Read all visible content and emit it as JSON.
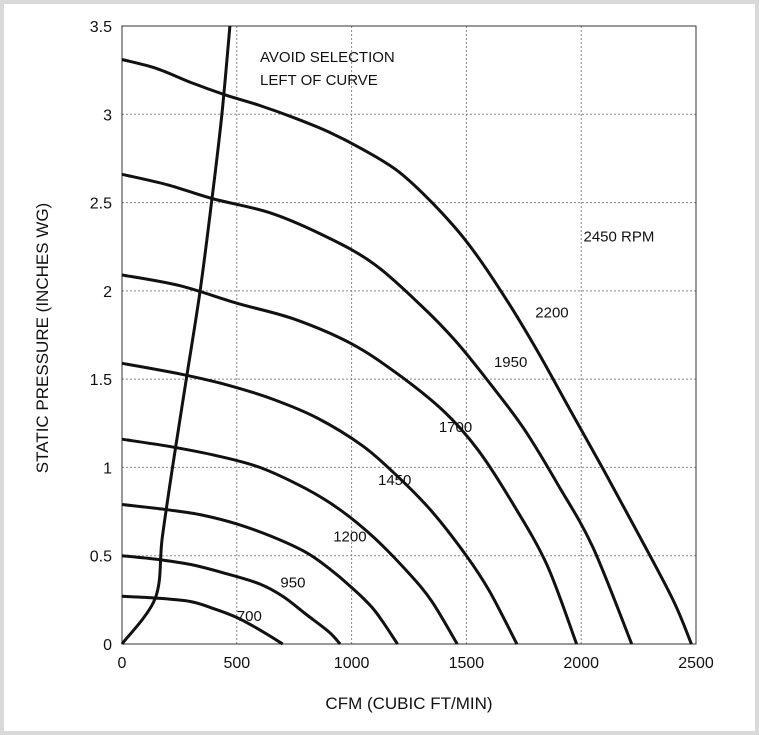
{
  "chart_data": {
    "type": "line",
    "xlabel": "CFM (CUBIC FT/MIN)",
    "ylabel": "STATIC PRESSURE (INCHES WG)",
    "xlim": [
      0,
      2500
    ],
    "ylim": [
      0,
      3.5
    ],
    "x_ticks": [
      "0",
      "500",
      "1000",
      "1500",
      "2000",
      "2500"
    ],
    "y_ticks": [
      "0",
      "0.5",
      "1",
      "1.5",
      "2",
      "2.5",
      "3",
      "3.5"
    ],
    "grid": true,
    "annotation": [
      "AVOID SELECTION",
      "LEFT OF CURVE"
    ],
    "series": [
      {
        "name": "700",
        "label_at": [
          500,
          0.13
        ],
        "points": [
          [
            0,
            0.27
          ],
          [
            150,
            0.26
          ],
          [
            300,
            0.24
          ],
          [
            400,
            0.2
          ],
          [
            500,
            0.15
          ],
          [
            600,
            0.08
          ],
          [
            700,
            0
          ]
        ]
      },
      {
        "name": "950",
        "label_at": [
          690,
          0.32
        ],
        "points": [
          [
            0,
            0.5
          ],
          [
            150,
            0.48
          ],
          [
            300,
            0.45
          ],
          [
            450,
            0.4
          ],
          [
            600,
            0.34
          ],
          [
            700,
            0.27
          ],
          [
            800,
            0.17
          ],
          [
            900,
            0.07
          ],
          [
            950,
            0
          ]
        ]
      },
      {
        "name": "1200",
        "label_at": [
          920,
          0.58
        ],
        "points": [
          [
            0,
            0.79
          ],
          [
            200,
            0.76
          ],
          [
            350,
            0.73
          ],
          [
            500,
            0.68
          ],
          [
            650,
            0.61
          ],
          [
            800,
            0.52
          ],
          [
            900,
            0.43
          ],
          [
            1000,
            0.32
          ],
          [
            1100,
            0.19
          ],
          [
            1200,
            0
          ]
        ]
      },
      {
        "name": "1450",
        "label_at": [
          1115,
          0.9
        ],
        "points": [
          [
            0,
            1.16
          ],
          [
            200,
            1.12
          ],
          [
            400,
            1.07
          ],
          [
            600,
            1.0
          ],
          [
            800,
            0.88
          ],
          [
            950,
            0.76
          ],
          [
            1100,
            0.6
          ],
          [
            1250,
            0.4
          ],
          [
            1350,
            0.24
          ],
          [
            1460,
            0
          ]
        ]
      },
      {
        "name": "1700",
        "label_at": [
          1380,
          1.2
        ],
        "points": [
          [
            0,
            1.59
          ],
          [
            250,
            1.53
          ],
          [
            450,
            1.47
          ],
          [
            650,
            1.39
          ],
          [
            850,
            1.28
          ],
          [
            1050,
            1.12
          ],
          [
            1200,
            0.95
          ],
          [
            1350,
            0.75
          ],
          [
            1500,
            0.5
          ],
          [
            1600,
            0.3
          ],
          [
            1720,
            0
          ]
        ]
      },
      {
        "name": "1950",
        "label_at": [
          1620,
          1.57
        ],
        "points": [
          [
            0,
            2.09
          ],
          [
            250,
            2.03
          ],
          [
            500,
            1.93
          ],
          [
            750,
            1.84
          ],
          [
            1000,
            1.7
          ],
          [
            1200,
            1.53
          ],
          [
            1400,
            1.32
          ],
          [
            1550,
            1.1
          ],
          [
            1700,
            0.8
          ],
          [
            1850,
            0.45
          ],
          [
            1980,
            0
          ]
        ]
      },
      {
        "name": "2200",
        "label_at": [
          1800,
          1.85
        ],
        "points": [
          [
            0,
            2.66
          ],
          [
            200,
            2.6
          ],
          [
            400,
            2.52
          ],
          [
            650,
            2.44
          ],
          [
            900,
            2.3
          ],
          [
            1100,
            2.15
          ],
          [
            1300,
            1.92
          ],
          [
            1450,
            1.72
          ],
          [
            1600,
            1.48
          ],
          [
            1750,
            1.22
          ],
          [
            1900,
            0.9
          ],
          [
            2050,
            0.55
          ],
          [
            2220,
            0
          ]
        ]
      },
      {
        "name": "2450 RPM",
        "label_at": [
          2010,
          2.28
        ],
        "points": [
          [
            0,
            3.31
          ],
          [
            150,
            3.26
          ],
          [
            300,
            3.18
          ],
          [
            450,
            3.11
          ],
          [
            600,
            3.05
          ],
          [
            750,
            2.98
          ],
          [
            900,
            2.9
          ],
          [
            1050,
            2.8
          ],
          [
            1200,
            2.68
          ],
          [
            1350,
            2.5
          ],
          [
            1500,
            2.28
          ],
          [
            1650,
            2.0
          ],
          [
            1800,
            1.68
          ],
          [
            1950,
            1.33
          ],
          [
            2100,
            0.98
          ],
          [
            2250,
            0.62
          ],
          [
            2400,
            0.25
          ],
          [
            2480,
            0
          ]
        ]
      }
    ],
    "boundary": {
      "points": [
        [
          0,
          0
        ],
        [
          145,
          0.26
        ],
        [
          175,
          0.6
        ],
        [
          220,
          1.0
        ],
        [
          280,
          1.5
        ],
        [
          340,
          2.0
        ],
        [
          390,
          2.5
        ],
        [
          435,
          3.0
        ],
        [
          470,
          3.5
        ]
      ]
    }
  }
}
